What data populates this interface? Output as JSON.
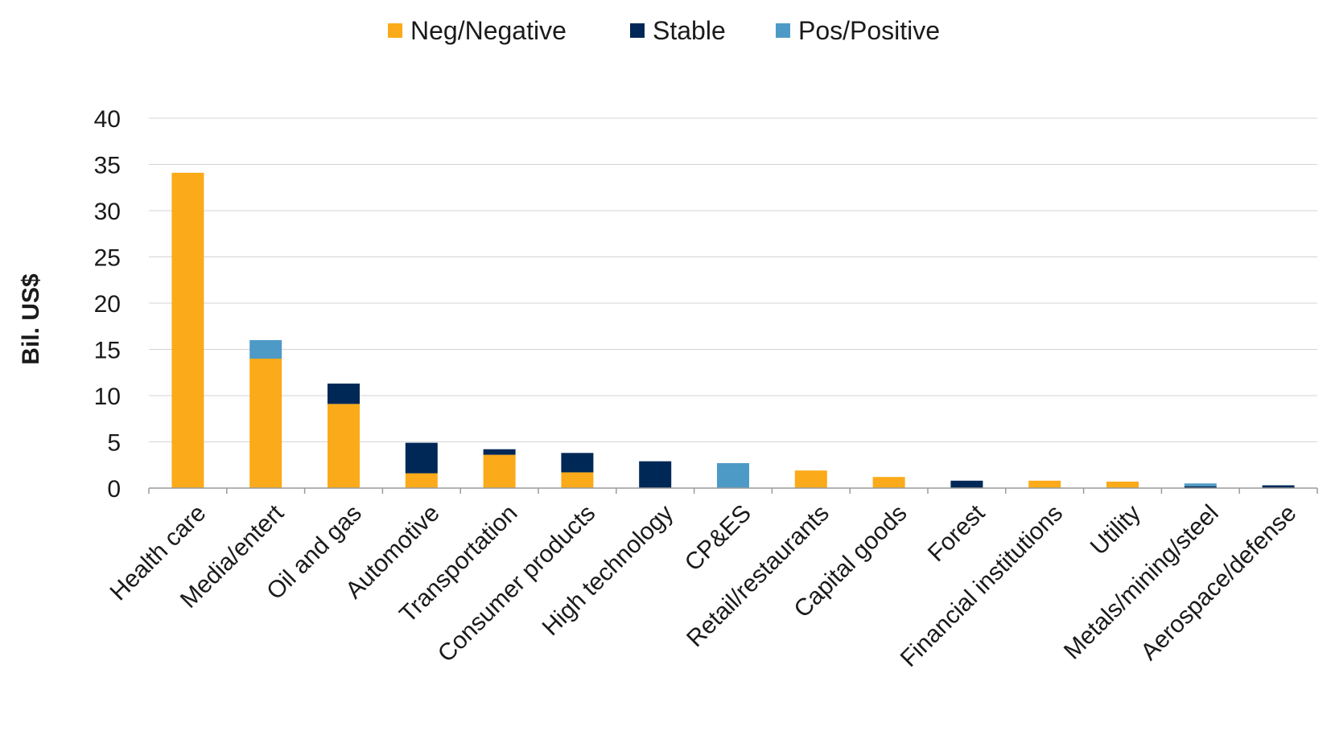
{
  "chart_data": {
    "type": "bar",
    "stacked": true,
    "ylabel": "Bil. US$",
    "xlabel": "",
    "ylim": [
      0,
      40
    ],
    "yticks": [
      0,
      5,
      10,
      15,
      20,
      25,
      30,
      35,
      40
    ],
    "grid": true,
    "legend_position": "top",
    "categories": [
      "Health care",
      "Media/entert",
      "Oil and gas",
      "Automotive",
      "Transportation",
      "Consumer products",
      "High technology",
      "CP&ES",
      "Retail/restaurants",
      "Capital goods",
      "Forest",
      "Financial institutions",
      "Utility",
      "Metals/mining/steel",
      "Aerospace/defense"
    ],
    "series": [
      {
        "name": "Neg/Negative",
        "color": "#FBAA19",
        "values": [
          34.1,
          14.0,
          9.1,
          1.6,
          3.6,
          1.7,
          0,
          0,
          1.9,
          1.2,
          0,
          0.8,
          0.7,
          0,
          0
        ]
      },
      {
        "name": "Stable",
        "color": "#002856",
        "values": [
          0,
          0,
          2.2,
          3.3,
          0.6,
          2.1,
          2.9,
          0,
          0,
          0,
          0.8,
          0,
          0,
          0.2,
          0.3
        ]
      },
      {
        "name": "Pos/Positive",
        "color": "#4E9AC6",
        "values": [
          0,
          2.0,
          0,
          0,
          0,
          0,
          0,
          2.7,
          0,
          0,
          0,
          0,
          0,
          0.3,
          0
        ]
      }
    ]
  }
}
